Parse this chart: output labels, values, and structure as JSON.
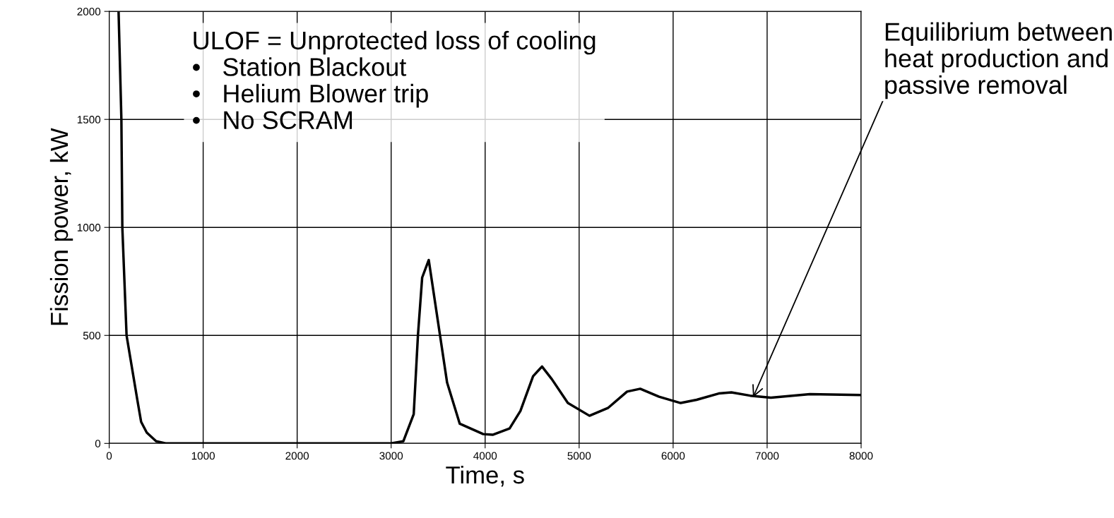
{
  "chart_data": {
    "type": "line",
    "xlabel": "Time, s",
    "ylabel": "Fission power, kW",
    "x": [
      100,
      130,
      140,
      185,
      300,
      340,
      400,
      500,
      600,
      1000,
      2000,
      3000,
      3130,
      3240,
      3285,
      3330,
      3400,
      3520,
      3595,
      3730,
      3980,
      4080,
      4260,
      4375,
      4510,
      4605,
      4710,
      4880,
      5110,
      5310,
      5510,
      5650,
      5850,
      6080,
      6250,
      6485,
      6620,
      6820,
      7040,
      7455,
      7990
    ],
    "series": [
      {
        "color": "#000000",
        "values": [
          2000,
          1500,
          1000,
          500,
          200,
          100,
          50,
          10,
          0,
          0,
          0,
          0,
          10,
          135,
          500,
          768,
          849,
          500,
          282,
          91,
          43,
          40,
          69,
          150,
          311,
          356,
          297,
          187,
          128,
          165,
          240,
          253,
          216,
          187,
          202,
          231,
          236,
          221,
          212,
          228,
          224
        ]
      }
    ],
    "xlim": [
      0,
      8000
    ],
    "xticks": [
      0,
      1000,
      2000,
      3000,
      4000,
      5000,
      6000,
      7000,
      8000
    ],
    "ylim": [
      0,
      2000
    ],
    "yticks": [
      0,
      500,
      1000,
      1500,
      2000
    ],
    "grid": true,
    "legend": false,
    "marker": "none",
    "line_style": "solid",
    "annotations": [
      "ULOF = Unprotected loss of cooling\n•   Station Blackout\n•   Helium Blower trip\n•   No SCRAM",
      {
        "text": "Equilibrium between\nheat production and\npassive removal",
        "x": 6850,
        "y": 213
      }
    ]
  }
}
